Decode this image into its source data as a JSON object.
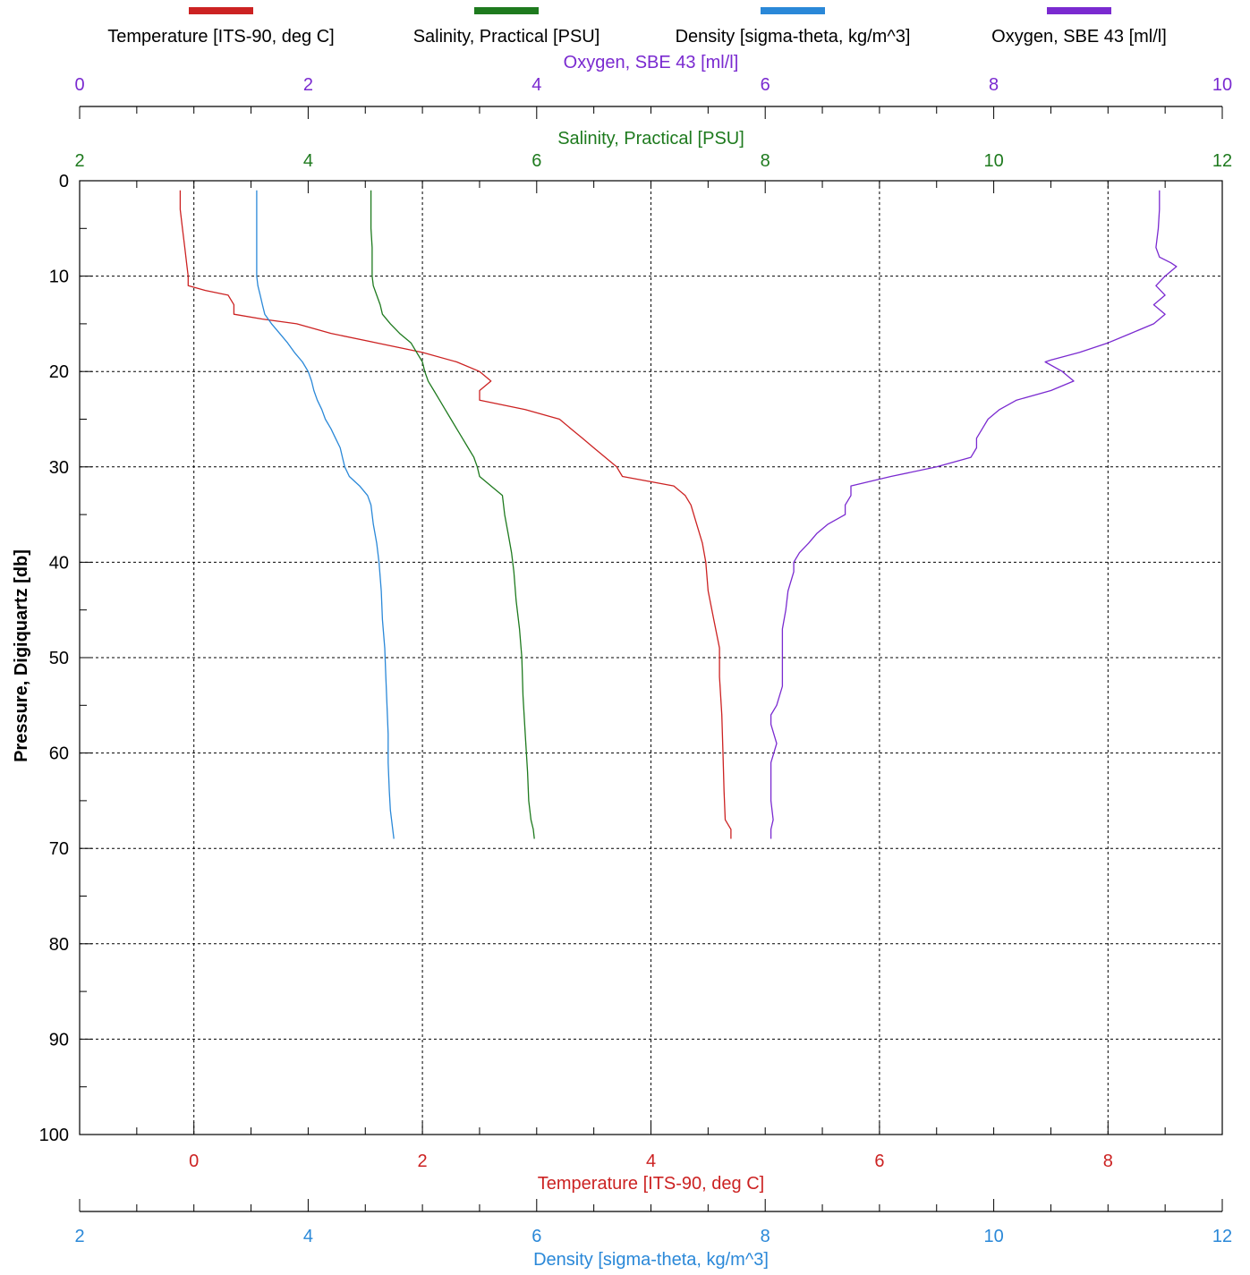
{
  "legend": [
    {
      "label": "Temperature [ITS-90, deg C]",
      "color": "#cc2222"
    },
    {
      "label": "Salinity, Practical [PSU]",
      "color": "#1e7a1e"
    },
    {
      "label": "Density [sigma-theta, kg/m^3]",
      "color": "#2a88d8"
    },
    {
      "label": "Oxygen, SBE 43 [ml/l]",
      "color": "#7a2ad0"
    }
  ],
  "axes": {
    "y": {
      "label": "Pressure, Digiquartz [db]",
      "min": 0,
      "max": 100,
      "ticks": [
        0,
        10,
        20,
        30,
        40,
        50,
        60,
        70,
        80,
        90,
        100
      ],
      "color": "#000000"
    },
    "oxygen": {
      "label": "Oxygen, SBE 43 [ml/l]",
      "min": 0,
      "max": 10,
      "ticks": [
        0,
        2,
        4,
        6,
        8,
        10
      ],
      "color": "#7a2ad0"
    },
    "salinity": {
      "label": "Salinity, Practical [PSU]",
      "min": 2,
      "max": 12,
      "ticks": [
        2,
        4,
        6,
        8,
        10,
        12
      ],
      "color": "#1e7a1e"
    },
    "temperature": {
      "label": "Temperature [ITS-90, deg C]",
      "min": -1,
      "max": 9,
      "ticks": [
        0,
        2,
        4,
        6,
        8
      ],
      "color": "#cc2222"
    },
    "density": {
      "label": "Density [sigma-theta, kg/m^3]",
      "min": 2,
      "max": 12,
      "ticks": [
        2,
        4,
        6,
        8,
        10,
        12
      ],
      "color": "#2a88d8"
    }
  },
  "chart_data": {
    "type": "line",
    "y_axis": "pressure",
    "y_reversed": true,
    "grid": true,
    "legend_placement": "top",
    "series": [
      {
        "name": "Temperature [ITS-90, deg C]",
        "axis": "temperature",
        "color": "#cc2222",
        "points": [
          [
            -0.12,
            1
          ],
          [
            -0.12,
            3
          ],
          [
            -0.1,
            5
          ],
          [
            -0.08,
            7
          ],
          [
            -0.06,
            9
          ],
          [
            -0.05,
            10
          ],
          [
            -0.05,
            11
          ],
          [
            0.1,
            11.5
          ],
          [
            0.3,
            12
          ],
          [
            0.35,
            13
          ],
          [
            0.35,
            14
          ],
          [
            0.6,
            14.5
          ],
          [
            0.9,
            15
          ],
          [
            1.2,
            16
          ],
          [
            1.6,
            17
          ],
          [
            2.0,
            18
          ],
          [
            2.3,
            19
          ],
          [
            2.5,
            20
          ],
          [
            2.6,
            21
          ],
          [
            2.5,
            22
          ],
          [
            2.5,
            23
          ],
          [
            2.9,
            24
          ],
          [
            3.2,
            25
          ],
          [
            3.3,
            26
          ],
          [
            3.4,
            27
          ],
          [
            3.5,
            28
          ],
          [
            3.6,
            29
          ],
          [
            3.7,
            30
          ],
          [
            3.75,
            31
          ],
          [
            4.2,
            32
          ],
          [
            4.3,
            33
          ],
          [
            4.35,
            34
          ],
          [
            4.4,
            36
          ],
          [
            4.45,
            38
          ],
          [
            4.48,
            40
          ],
          [
            4.5,
            43
          ],
          [
            4.55,
            46
          ],
          [
            4.6,
            49
          ],
          [
            4.6,
            52
          ],
          [
            4.62,
            56
          ],
          [
            4.63,
            60
          ],
          [
            4.64,
            64
          ],
          [
            4.65,
            67
          ],
          [
            4.7,
            68
          ],
          [
            4.7,
            69
          ]
        ]
      },
      {
        "name": "Salinity, Practical [PSU]",
        "axis": "salinity",
        "color": "#1e7a1e",
        "points": [
          [
            4.55,
            1
          ],
          [
            4.55,
            3
          ],
          [
            4.55,
            5
          ],
          [
            4.56,
            7
          ],
          [
            4.56,
            9
          ],
          [
            4.56,
            10
          ],
          [
            4.57,
            11
          ],
          [
            4.6,
            12
          ],
          [
            4.63,
            13
          ],
          [
            4.65,
            14
          ],
          [
            4.72,
            15
          ],
          [
            4.8,
            16
          ],
          [
            4.9,
            17
          ],
          [
            4.95,
            18
          ],
          [
            5.0,
            19
          ],
          [
            5.02,
            20
          ],
          [
            5.05,
            21
          ],
          [
            5.1,
            22
          ],
          [
            5.15,
            23
          ],
          [
            5.2,
            24
          ],
          [
            5.25,
            25
          ],
          [
            5.3,
            26
          ],
          [
            5.35,
            27
          ],
          [
            5.4,
            28
          ],
          [
            5.45,
            29
          ],
          [
            5.48,
            30
          ],
          [
            5.5,
            31
          ],
          [
            5.6,
            32
          ],
          [
            5.7,
            33
          ],
          [
            5.72,
            35
          ],
          [
            5.75,
            37
          ],
          [
            5.78,
            39
          ],
          [
            5.8,
            41
          ],
          [
            5.82,
            44
          ],
          [
            5.85,
            47
          ],
          [
            5.87,
            50
          ],
          [
            5.88,
            54
          ],
          [
            5.9,
            58
          ],
          [
            5.92,
            62
          ],
          [
            5.93,
            65
          ],
          [
            5.95,
            67
          ],
          [
            5.97,
            68
          ],
          [
            5.98,
            69
          ]
        ]
      },
      {
        "name": "Density [sigma-theta, kg/m^3]",
        "axis": "density",
        "color": "#2a88d8",
        "points": [
          [
            3.55,
            1
          ],
          [
            3.55,
            3
          ],
          [
            3.55,
            5
          ],
          [
            3.55,
            7
          ],
          [
            3.55,
            9
          ],
          [
            3.55,
            10
          ],
          [
            3.56,
            11
          ],
          [
            3.58,
            12
          ],
          [
            3.6,
            13
          ],
          [
            3.62,
            14
          ],
          [
            3.68,
            15
          ],
          [
            3.75,
            16
          ],
          [
            3.82,
            17
          ],
          [
            3.88,
            18
          ],
          [
            3.95,
            19
          ],
          [
            4.0,
            20
          ],
          [
            4.03,
            21
          ],
          [
            4.05,
            22
          ],
          [
            4.08,
            23
          ],
          [
            4.12,
            24
          ],
          [
            4.15,
            25
          ],
          [
            4.2,
            26
          ],
          [
            4.24,
            27
          ],
          [
            4.28,
            28
          ],
          [
            4.3,
            29
          ],
          [
            4.32,
            30
          ],
          [
            4.36,
            31
          ],
          [
            4.45,
            32
          ],
          [
            4.52,
            33
          ],
          [
            4.55,
            34
          ],
          [
            4.57,
            36
          ],
          [
            4.6,
            38
          ],
          [
            4.62,
            40
          ],
          [
            4.64,
            43
          ],
          [
            4.65,
            46
          ],
          [
            4.67,
            49
          ],
          [
            4.68,
            52
          ],
          [
            4.69,
            55
          ],
          [
            4.7,
            58
          ],
          [
            4.7,
            61
          ],
          [
            4.71,
            64
          ],
          [
            4.72,
            66
          ],
          [
            4.73,
            67
          ],
          [
            4.74,
            68
          ],
          [
            4.75,
            69
          ]
        ]
      },
      {
        "name": "Oxygen, SBE 43 [ml/l]",
        "axis": "oxygen",
        "color": "#7a2ad0",
        "points": [
          [
            9.45,
            1
          ],
          [
            9.45,
            3
          ],
          [
            9.44,
            5
          ],
          [
            9.42,
            7
          ],
          [
            9.45,
            8
          ],
          [
            9.55,
            8.6
          ],
          [
            9.6,
            9
          ],
          [
            9.5,
            10
          ],
          [
            9.42,
            11
          ],
          [
            9.5,
            12
          ],
          [
            9.4,
            13
          ],
          [
            9.5,
            14
          ],
          [
            9.4,
            15
          ],
          [
            9.2,
            16
          ],
          [
            9.0,
            17
          ],
          [
            8.75,
            18
          ],
          [
            8.5,
            18.8
          ],
          [
            8.45,
            19
          ],
          [
            8.6,
            20
          ],
          [
            8.7,
            21
          ],
          [
            8.5,
            22
          ],
          [
            8.2,
            23
          ],
          [
            8.05,
            24
          ],
          [
            7.95,
            25
          ],
          [
            7.9,
            26
          ],
          [
            7.85,
            27
          ],
          [
            7.85,
            28
          ],
          [
            7.8,
            29
          ],
          [
            7.5,
            30
          ],
          [
            7.1,
            31
          ],
          [
            6.75,
            32
          ],
          [
            6.75,
            33
          ],
          [
            6.7,
            34
          ],
          [
            6.7,
            35
          ],
          [
            6.55,
            36
          ],
          [
            6.45,
            37
          ],
          [
            6.38,
            38
          ],
          [
            6.3,
            39
          ],
          [
            6.25,
            40
          ],
          [
            6.25,
            41
          ],
          [
            6.2,
            43
          ],
          [
            6.18,
            45
          ],
          [
            6.15,
            47
          ],
          [
            6.15,
            49
          ],
          [
            6.15,
            51
          ],
          [
            6.15,
            53
          ],
          [
            6.1,
            55
          ],
          [
            6.05,
            56
          ],
          [
            6.05,
            57
          ],
          [
            6.1,
            59
          ],
          [
            6.05,
            61
          ],
          [
            6.05,
            63
          ],
          [
            6.05,
            65
          ],
          [
            6.07,
            67
          ],
          [
            6.05,
            68
          ],
          [
            6.05,
            69
          ]
        ]
      }
    ]
  }
}
